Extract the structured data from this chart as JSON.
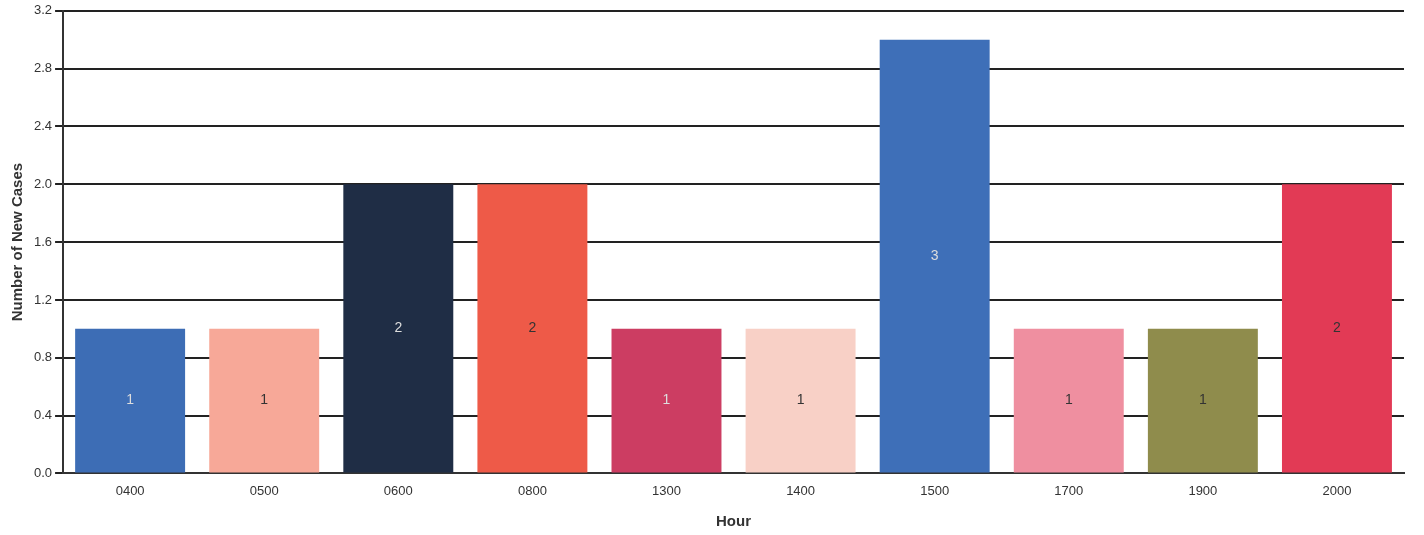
{
  "chart_data": {
    "type": "bar",
    "xlabel": "Hour",
    "ylabel": "Number of New Cases",
    "categories": [
      "0400",
      "0500",
      "0600",
      "0800",
      "1300",
      "1400",
      "1500",
      "1700",
      "1900",
      "2000"
    ],
    "values": [
      1,
      1,
      2,
      2,
      1,
      1,
      3,
      1,
      1,
      2
    ],
    "colors": [
      "#3d6db5",
      "#f7a898",
      "#1f2d45",
      "#ee5a48",
      "#cc3d62",
      "#f8d0c6",
      "#3e6fb8",
      "#ef8fa0",
      "#8f8c4c",
      "#e23a55"
    ],
    "ylim": [
      0,
      3.2
    ],
    "yticks": [
      {
        "value": 0,
        "label": "0.0"
      },
      {
        "value": 0.4,
        "label": "0.4"
      },
      {
        "value": 0.8,
        "label": "0.8"
      },
      {
        "value": 1.2,
        "label": "1.2"
      },
      {
        "value": 1.6,
        "label": "1.6"
      },
      {
        "value": 2,
        "label": "2.0"
      },
      {
        "value": 2.4,
        "label": "2.4"
      },
      {
        "value": 2.8,
        "label": "2.8"
      },
      {
        "value": 3.2,
        "label": "3.2"
      }
    ],
    "grid": "y",
    "data_labels": true,
    "legend": false
  }
}
